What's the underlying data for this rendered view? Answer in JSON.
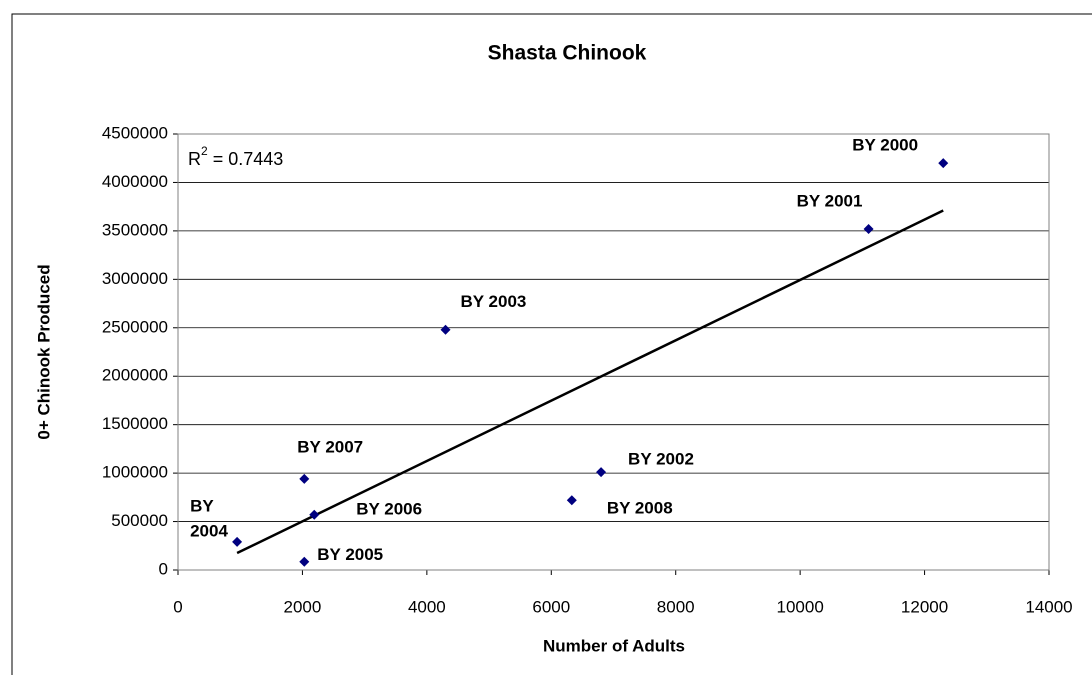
{
  "chart_data": {
    "type": "scatter",
    "title": "Shasta Chinook",
    "x_label": "Number of Adults",
    "y_label": "0+ Chinook Produced",
    "annotation": {
      "base": "R",
      "sup": "2",
      "text": " = 0.7443"
    },
    "series": [
      {
        "color": "#000080",
        "x": [
          12300,
          11100,
          4300,
          6800,
          6330,
          2030,
          2190,
          950,
          2030
        ],
        "values": [
          4200000,
          3520000,
          2480000,
          1010000,
          720000,
          940000,
          570000,
          290000,
          85000
        ],
        "point_labels": [
          [
            "BY 2000"
          ],
          [
            "BY 2001"
          ],
          [
            "BY 2003"
          ],
          [
            "BY 2002"
          ],
          [
            "BY 2008"
          ],
          [
            "BY 2007"
          ],
          [
            "BY 2006"
          ],
          [
            "BY",
            "2004"
          ],
          [
            "BY 2005"
          ]
        ]
      }
    ],
    "trendline": {
      "color": "#000000",
      "x": [
        950,
        12300
      ],
      "values": [
        175000,
        3710000
      ]
    },
    "xlim": [
      0,
      14000
    ],
    "xticks": [
      0,
      2000,
      4000,
      6000,
      8000,
      10000,
      12000,
      14000
    ],
    "ylim": [
      0,
      4500000
    ],
    "yticks": [
      0,
      500000,
      1000000,
      1500000,
      2000000,
      2500000,
      3000000,
      3500000,
      4000000,
      4500000
    ],
    "grid": true
  }
}
